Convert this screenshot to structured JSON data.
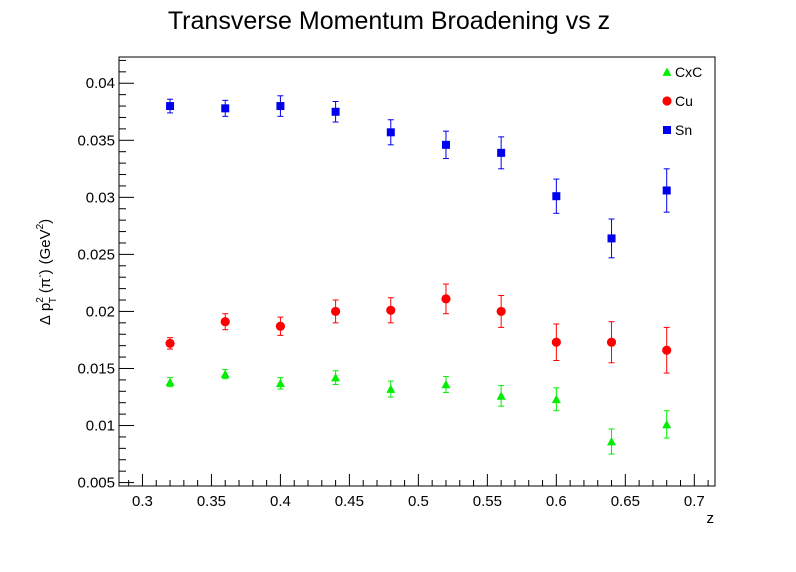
{
  "chart_data": {
    "type": "scatter",
    "title": "Transverse Momentum Broadening vs z",
    "xlabel": "z",
    "ylabel_parts": {
      "delta": "Δ",
      "p": "p",
      "sup2": "2",
      "subT": "T",
      "lp": "(",
      "pi": "π",
      "minus": "-",
      "rp": ")",
      "unit_open": "(GeV",
      "unit_sup": "2",
      "unit_close": ")"
    },
    "xlim": [
      0.283,
      0.715
    ],
    "ylim": [
      0.0047,
      0.0423
    ],
    "x_ticks": [
      0.3,
      0.35,
      0.4,
      0.45,
      0.5,
      0.55,
      0.6,
      0.65,
      0.7
    ],
    "x_tick_labels": [
      "0.3",
      "0.35",
      "0.4",
      "0.45",
      "0.5",
      "0.55",
      "0.6",
      "0.65",
      "0.7"
    ],
    "y_ticks": [
      0.005,
      0.01,
      0.015,
      0.02,
      0.025,
      0.03,
      0.035,
      0.04
    ],
    "y_tick_labels": [
      "0.005",
      "0.01",
      "0.015",
      "0.02",
      "0.025",
      "0.03",
      "0.035",
      "0.04"
    ],
    "grid": false,
    "legend_position": "top-right",
    "series": [
      {
        "name": "CxC",
        "color": "#00ee00",
        "marker": "triangle",
        "x": [
          0.32,
          0.36,
          0.4,
          0.44,
          0.48,
          0.52,
          0.56,
          0.6,
          0.64,
          0.68
        ],
        "y": [
          0.0138,
          0.0145,
          0.0137,
          0.0142,
          0.0132,
          0.0136,
          0.0126,
          0.0123,
          0.0086,
          0.0101
        ],
        "err": [
          0.0004,
          0.0004,
          0.0005,
          0.0006,
          0.0007,
          0.0007,
          0.0009,
          0.001,
          0.0011,
          0.0012
        ]
      },
      {
        "name": "Cu",
        "color": "#ff0000",
        "marker": "circle",
        "x": [
          0.32,
          0.36,
          0.4,
          0.44,
          0.48,
          0.52,
          0.56,
          0.6,
          0.64,
          0.68
        ],
        "y": [
          0.0172,
          0.0191,
          0.0187,
          0.02,
          0.0201,
          0.0211,
          0.02,
          0.0173,
          0.0173,
          0.0166
        ],
        "err": [
          0.0005,
          0.0007,
          0.0008,
          0.001,
          0.0011,
          0.0013,
          0.0014,
          0.0016,
          0.0018,
          0.002
        ]
      },
      {
        "name": "Sn",
        "color": "#0000ee",
        "marker": "square",
        "x": [
          0.32,
          0.36,
          0.4,
          0.44,
          0.48,
          0.52,
          0.56,
          0.6,
          0.64,
          0.68
        ],
        "y": [
          0.038,
          0.0378,
          0.038,
          0.0375,
          0.0357,
          0.0346,
          0.0339,
          0.0301,
          0.0264,
          0.0306
        ],
        "err": [
          0.0006,
          0.0007,
          0.0009,
          0.0009,
          0.0011,
          0.0012,
          0.0014,
          0.0015,
          0.0017,
          0.0019
        ]
      }
    ]
  }
}
